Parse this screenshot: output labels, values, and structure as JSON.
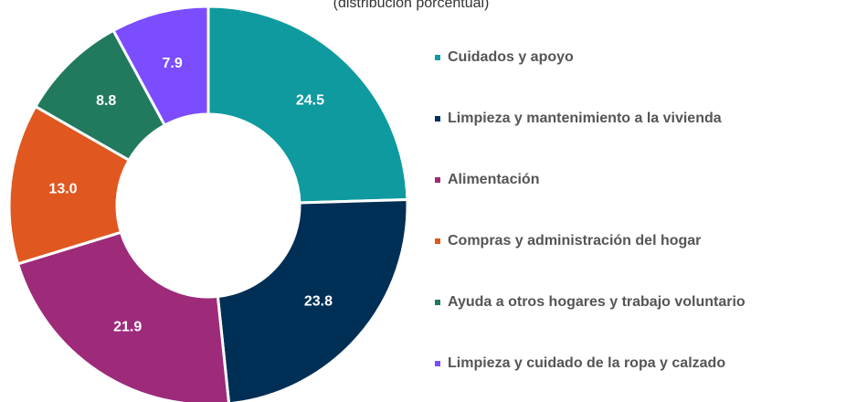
{
  "chart_data": {
    "type": "donut",
    "subtitle": "(distribución porcentual)",
    "categories": [
      "Cuidados y apoyo",
      "Limpieza y mantenimiento a la vivienda",
      "Alimentación",
      "Compras y administración del hogar",
      "Ayuda a otros hogares y trabajo voluntario",
      "Limpieza y cuidado de la ropa y calzado"
    ],
    "values": [
      24.5,
      23.8,
      21.9,
      13.0,
      8.8,
      7.9
    ],
    "value_labels": [
      "24.5",
      "23.8",
      "21.9",
      "13.0",
      "8.8",
      "7.9"
    ],
    "colors": [
      "#0e9a9e",
      "#002f56",
      "#9e2a7a",
      "#e0571f",
      "#217a5e",
      "#7b4dff"
    ]
  }
}
